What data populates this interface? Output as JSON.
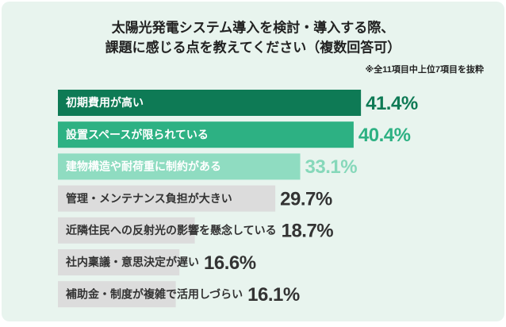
{
  "chart_data": {
    "type": "bar",
    "orientation": "horizontal",
    "title": "太陽光発電システム導入を検討・導入する際、",
    "subtitle": "課題に感じる点を教えてください（複数回答可）",
    "note": "※全11項目中上位7項目を抜粋",
    "categories": [
      "初期費用が高い",
      "設置スペースが限られている",
      "建物構造や耐荷重に制約がある",
      "管理・メンテナンス負担が大きい",
      "近隣住民への反射光の影響を懸念している",
      "社内稟議・意思決定が遅い",
      "補助金・制度が複雑で活用しづらい"
    ],
    "values": [
      41.4,
      40.4,
      33.1,
      29.7,
      18.7,
      16.6,
      16.1
    ],
    "value_labels": [
      "41.4%",
      "40.4%",
      "33.1%",
      "29.7%",
      "18.7%",
      "16.6%",
      "16.1%"
    ],
    "colors": [
      "#0e7a55",
      "#2db183",
      "#8fdcc1",
      "#dcdcdc",
      "#dcdcdc",
      "#dcdcdc",
      "#dcdcdc"
    ],
    "value_colors": [
      "#0e7a55",
      "#2db183",
      "#86d8ba",
      "#333333",
      "#333333",
      "#333333",
      "#333333"
    ]
  }
}
